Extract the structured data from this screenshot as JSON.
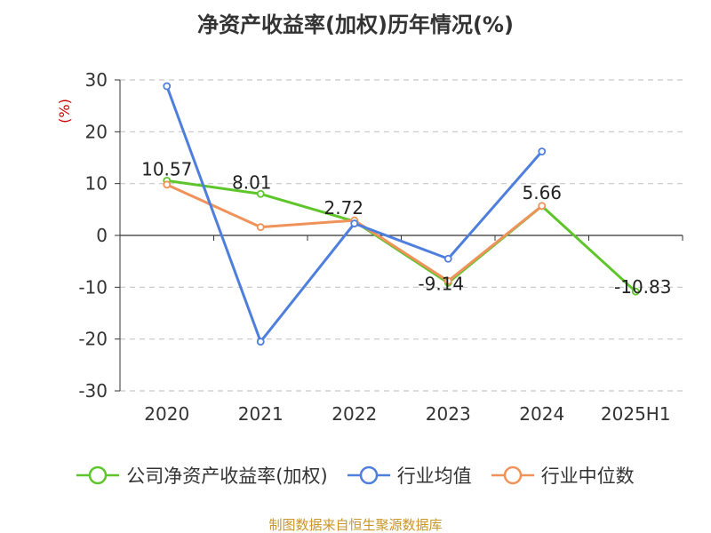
{
  "chart_data": {
    "type": "line",
    "title": "净资产收益率(加权)历年情况(%)",
    "ylabel": "(%)",
    "xlabel": "",
    "categories": [
      "2020",
      "2021",
      "2022",
      "2023",
      "2024",
      "2025H1"
    ],
    "ylim": [
      -30,
      30
    ],
    "yticks": [
      30,
      20,
      10,
      0,
      -10,
      -20,
      -30
    ],
    "grid": true,
    "legend_position": "bottom",
    "series": [
      {
        "name": "公司净资产收益率(加权)",
        "color": "#5ec52b",
        "values": [
          10.57,
          8.01,
          2.72,
          -9.14,
          5.66,
          -10.83
        ],
        "labels": [
          "10.57",
          "8.01",
          "2.72",
          "-9.14",
          "5.66",
          "-10.83"
        ],
        "show_labels": true
      },
      {
        "name": "行业均值",
        "color": "#4f7fdc",
        "values": [
          28.8,
          -20.5,
          2.3,
          -4.5,
          16.2,
          null
        ],
        "show_labels": false
      },
      {
        "name": "行业中位数",
        "color": "#f0935a",
        "values": [
          9.8,
          1.6,
          2.9,
          -8.8,
          5.7,
          null
        ],
        "show_labels": false
      }
    ]
  },
  "source_text": "制图数据来自恒生聚源数据库",
  "colors": {
    "axis": "#333333",
    "grid": "#c8c8c8",
    "ylabel": "#cc0000",
    "source": "#c8962a"
  }
}
